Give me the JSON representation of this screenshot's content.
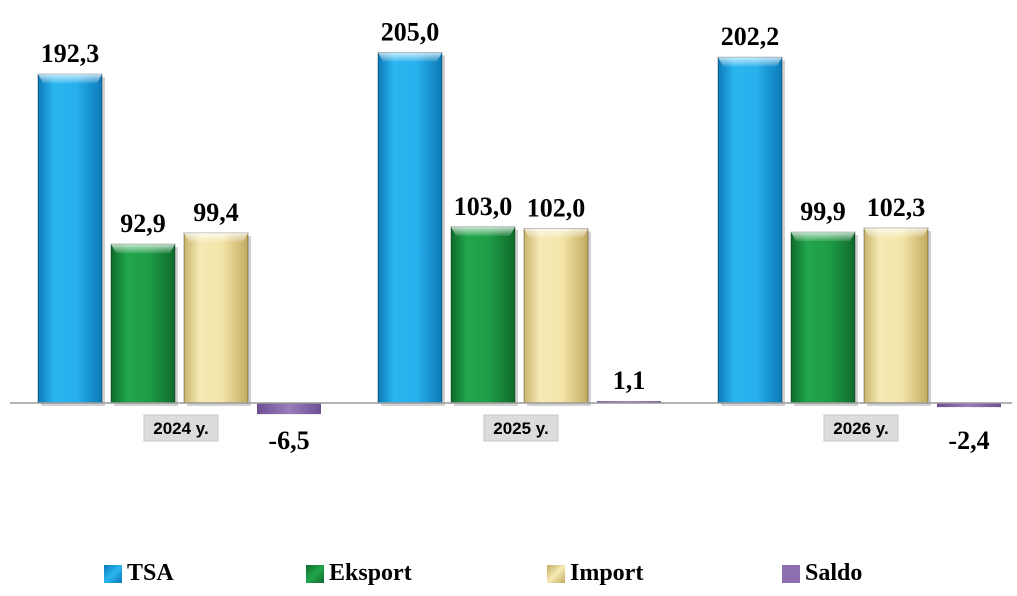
{
  "chart_data": {
    "type": "bar",
    "categories": [
      "2024 y.",
      "2025 y.",
      "2026 y."
    ],
    "series": [
      {
        "name": "TSA",
        "values": [
          192.3,
          205.0,
          202.2
        ],
        "labels": [
          "192,3",
          "205,0",
          "202,2"
        ],
        "color": "#1fa9e6"
      },
      {
        "name": "Eksport",
        "values": [
          92.9,
          103.0,
          99.9
        ],
        "labels": [
          "92,9",
          "103,0",
          "99,9"
        ],
        "color": "#1f9a45"
      },
      {
        "name": "Import",
        "values": [
          99.4,
          102.0,
          102.3
        ],
        "labels": [
          "99,4",
          "102,0",
          "102,3"
        ],
        "color": "#f0e2a6"
      },
      {
        "name": "Saldo",
        "values": [
          -6.5,
          1.1,
          -2.4
        ],
        "labels": [
          "-6,5",
          "1,1",
          "-2,4"
        ],
        "color": "#8e6fb0"
      }
    ],
    "legend": "bottom",
    "grid": false
  }
}
